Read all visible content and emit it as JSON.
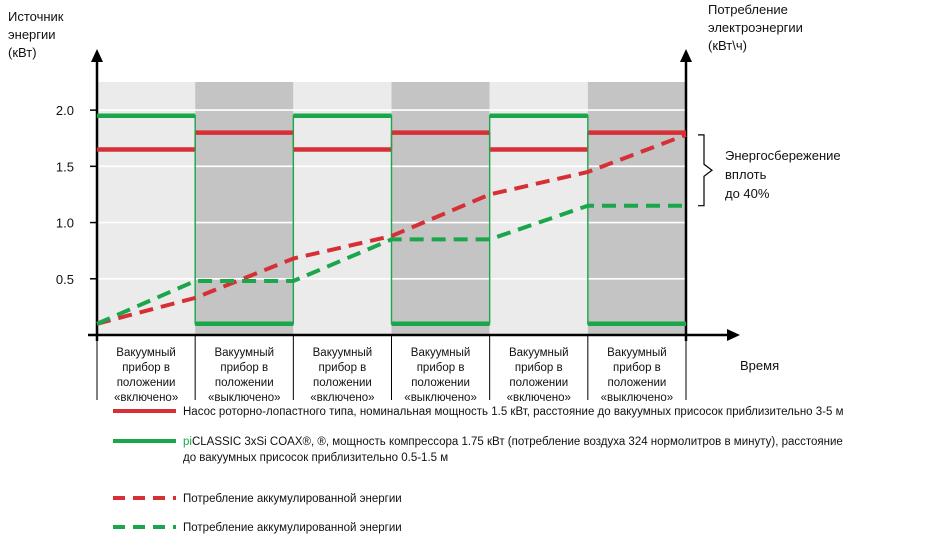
{
  "colors": {
    "red": "#d62f35",
    "green": "#1aa64a",
    "band_light": "#ebebeb",
    "band_dark": "#c4c4c4",
    "grid": "#ffffff",
    "axis": "#000000"
  },
  "chart_data": {
    "type": "line",
    "title": "",
    "ylabel_left": [
      "Источник",
      "энергии",
      "(кВт)"
    ],
    "ylabel_right": [
      "Потребление",
      "электроэнергии",
      "(кВт\\ч)"
    ],
    "xlabel": "Время",
    "ylim": [
      0,
      2.25
    ],
    "yticks": [
      0.5,
      1.0,
      1.5,
      2.0
    ],
    "ytick_labels": [
      "0.5",
      "1.0",
      "1.5",
      "2.0"
    ],
    "grid": true,
    "categories": [
      [
        "Вакуумный",
        "прибор в",
        "положении",
        "«включено»"
      ],
      [
        "Вакуумный",
        "прибор в",
        "положении",
        "«выключено»"
      ],
      [
        "Вакуумный",
        "прибор в",
        "положении",
        "«включено»"
      ],
      [
        "Вакуумный",
        "прибор в",
        "положении",
        "«выключено»"
      ],
      [
        "Вакуумный",
        "прибор в",
        "положении",
        "«включено»"
      ],
      [
        "Вакуумный",
        "прибор в",
        "положении",
        "«выключено»"
      ]
    ],
    "series": [
      {
        "key": "red_power",
        "style": "solid",
        "color": "red",
        "values": [
          1.65,
          1.8,
          1.65,
          1.8,
          1.65,
          1.8
        ]
      },
      {
        "key": "green_power",
        "style": "solid",
        "color": "green",
        "values": [
          1.95,
          0.1,
          1.95,
          0.1,
          1.95,
          0.1
        ]
      },
      {
        "key": "red_energy",
        "style": "dashed",
        "color": "red",
        "x": [
          0,
          1,
          2,
          3,
          4,
          5,
          6
        ],
        "values": [
          0.1,
          0.33,
          0.68,
          0.88,
          1.25,
          1.45,
          1.78
        ]
      },
      {
        "key": "green_energy",
        "style": "dashed",
        "color": "green",
        "x": [
          0,
          1,
          1.5,
          2,
          3,
          4,
          5,
          6
        ],
        "values": [
          0.1,
          0.48,
          0.48,
          0.48,
          0.85,
          0.85,
          1.15,
          1.15
        ]
      }
    ],
    "annotation": {
      "lines": [
        "Энергосбережение",
        "вплоть",
        "до 40%"
      ],
      "y_from": 1.15,
      "y_to": 1.78
    }
  },
  "legend": [
    {
      "key": "red_power",
      "style": "solid",
      "color": "red",
      "prefix": "",
      "lines": [
        "Насос роторно-лопастного типа,  номинальная мощность 1.5 кВт, расстояние до вакуумных присосок приблизительно 3-5 м"
      ]
    },
    {
      "key": "green_power",
      "style": "solid",
      "color": "green",
      "prefix": "pi",
      "lines": [
        "CLASSIC 3xSi COAX®, ®, мощность компрессора 1.75 кВт (потребление воздуха 324 нормолитров в минуту), расстояние",
        "до вакуумных присосок приблизительно 0.5-1.5 м"
      ]
    },
    {
      "key": "red_energy",
      "style": "dashed",
      "color": "red",
      "prefix": "",
      "lines": [
        "Потребление аккумулированной  энергии"
      ]
    },
    {
      "key": "green_energy",
      "style": "dashed",
      "color": "green",
      "prefix": "",
      "lines": [
        "Потребление аккумулированной  энергии"
      ]
    }
  ]
}
